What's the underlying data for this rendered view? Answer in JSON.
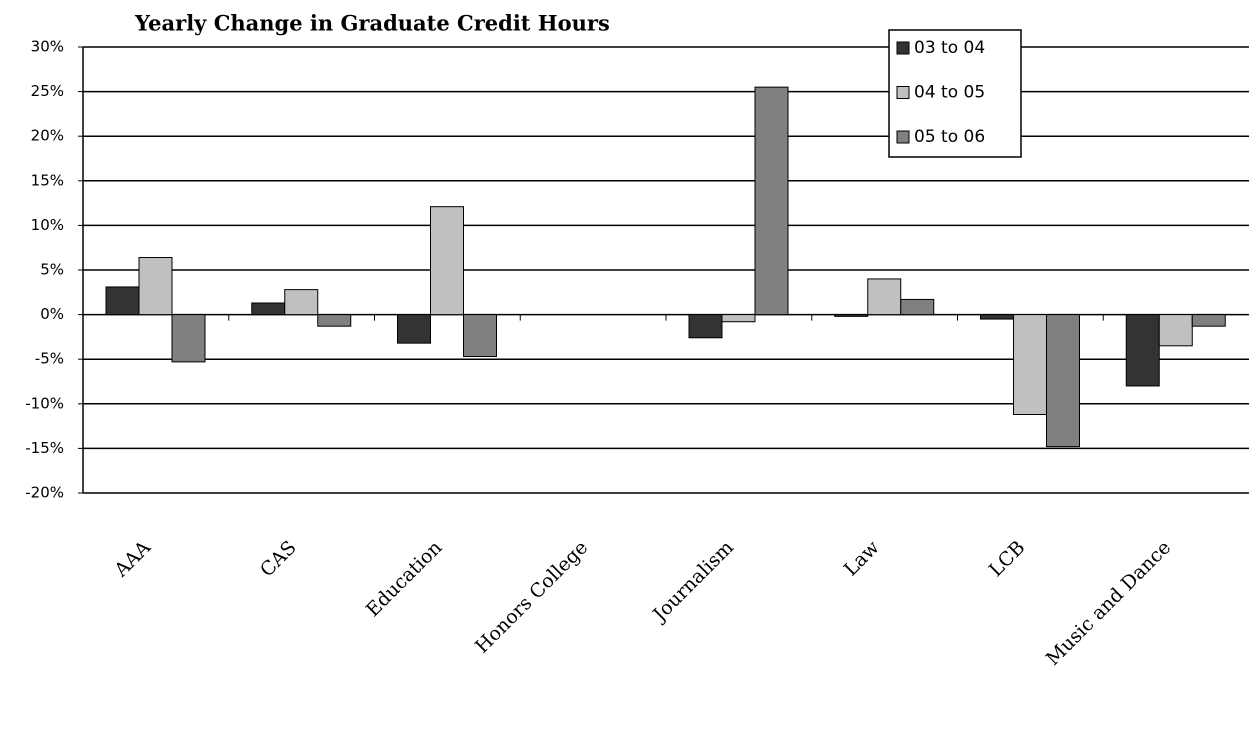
{
  "chart_data": {
    "type": "bar",
    "title": "Yearly Change in Graduate Credit Hours",
    "categories": [
      "AAA",
      "CAS",
      "Education",
      "Honors College",
      "Journalism",
      "Law",
      "LCB",
      "Music and Dance"
    ],
    "series": [
      {
        "name": "03 to 04",
        "color": "#333333",
        "values": [
          3.1,
          1.3,
          -3.2,
          null,
          -2.6,
          -0.2,
          -0.5,
          -8.0
        ]
      },
      {
        "name": "04 to 05",
        "color": "#c0c0c0",
        "values": [
          6.4,
          2.8,
          12.1,
          null,
          -0.8,
          4.0,
          -11.2,
          -3.5
        ]
      },
      {
        "name": "05 to 06",
        "color": "#808080",
        "values": [
          -5.3,
          -1.3,
          -4.7,
          null,
          25.5,
          1.7,
          -14.8,
          -1.3
        ]
      }
    ],
    "ylim": [
      -20,
      30
    ],
    "yticks": [
      {
        "value": -20,
        "label": "-20%"
      },
      {
        "value": -15,
        "label": "-15%"
      },
      {
        "value": -10,
        "label": "-10%"
      },
      {
        "value": -5,
        "label": "-5%"
      },
      {
        "value": 0,
        "label": "0%"
      },
      {
        "value": 5,
        "label": "5%"
      },
      {
        "value": 10,
        "label": "10%"
      },
      {
        "value": 15,
        "label": "15%"
      },
      {
        "value": 20,
        "label": "20%"
      },
      {
        "value": 25,
        "label": "25%"
      },
      {
        "value": 30,
        "label": "30%"
      }
    ],
    "grid": true,
    "legend": "top-right"
  }
}
